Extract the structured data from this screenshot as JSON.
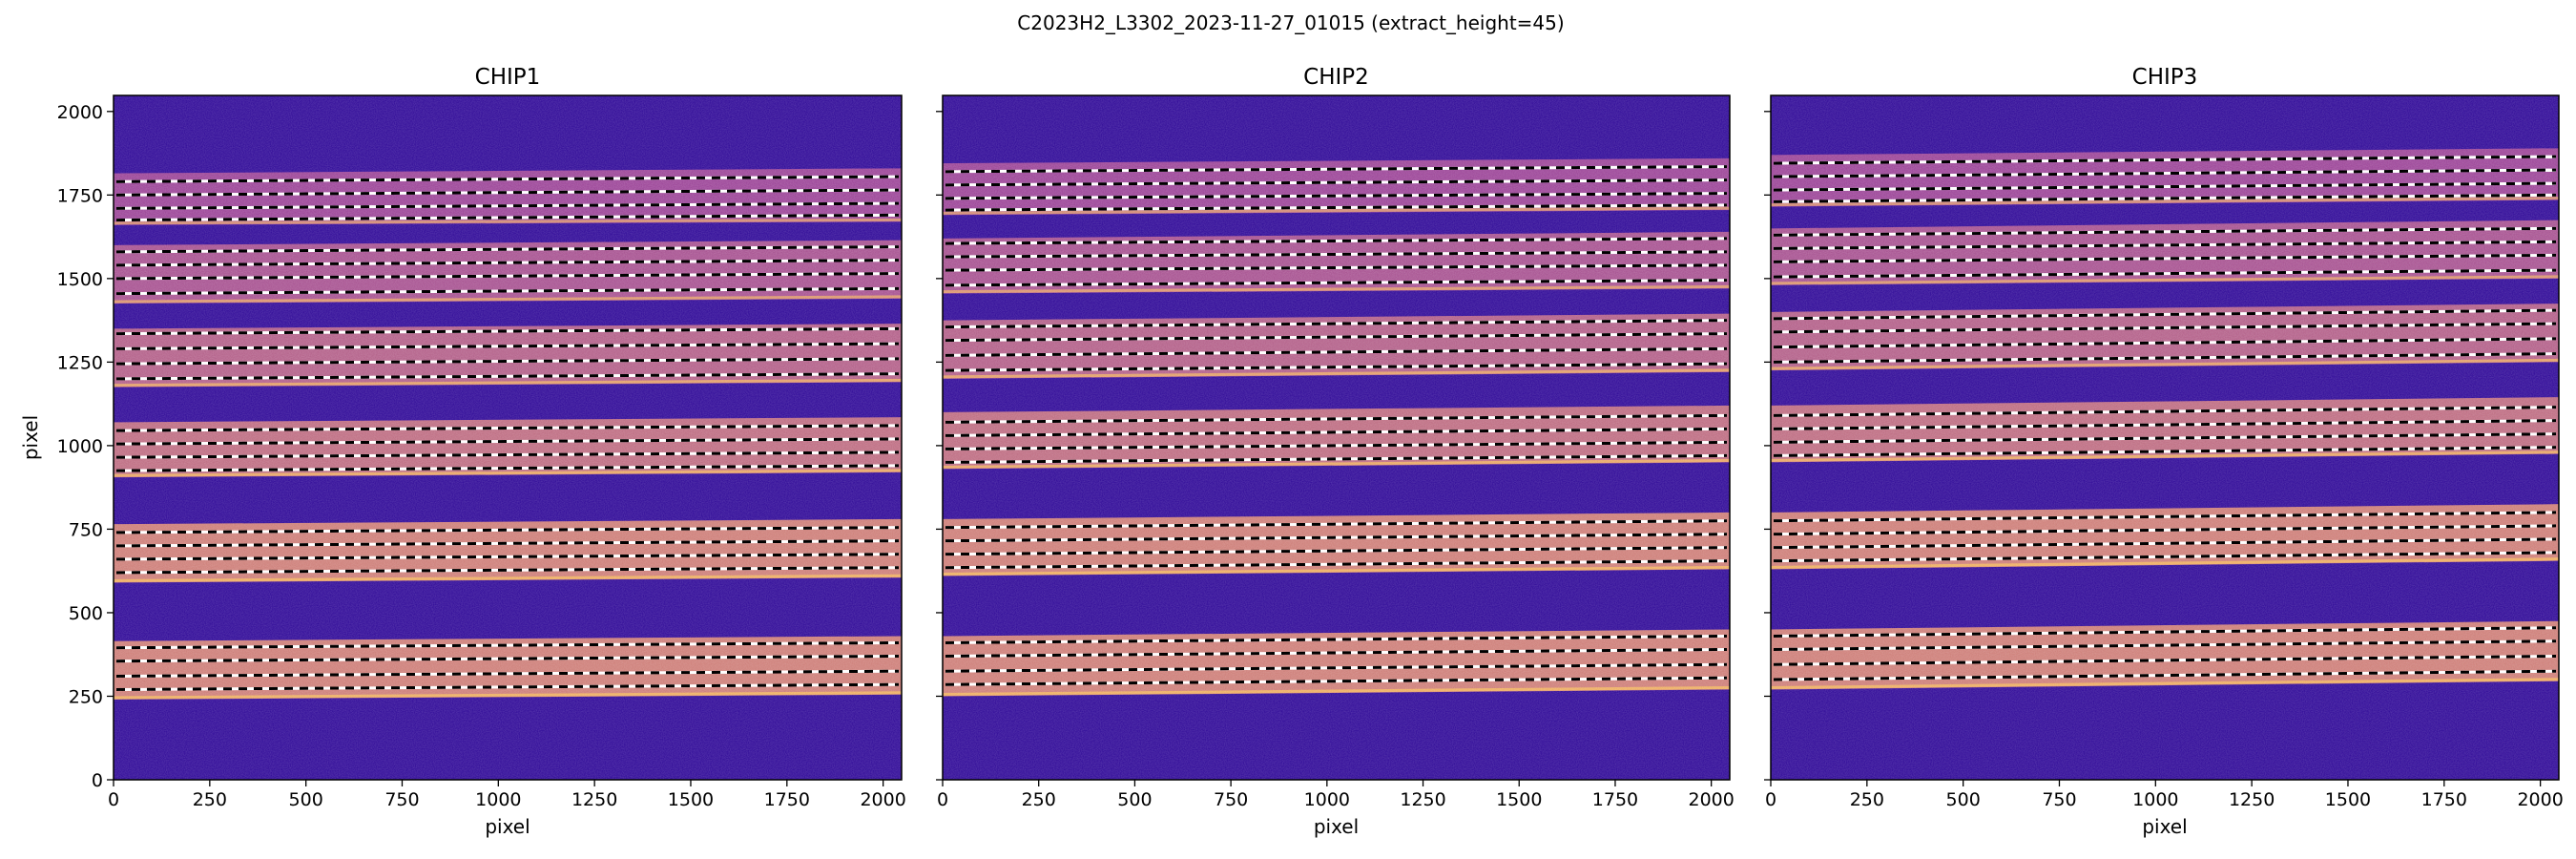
{
  "figure_title": "C2023H2_L3302_2023-11-27_01015  (extract_height=45)",
  "colors": {
    "background": "#2c0596",
    "band_low": "#8a2fa0",
    "band_high": "#d98a6e",
    "band_edge": "#f2b45e",
    "trace_line": "#ffffff",
    "trace_dash": "#000000"
  },
  "chart_data": [
    {
      "type": "heatmap",
      "title": "CHIP1",
      "xlabel": "pixel",
      "ylabel": "pixel",
      "xlim": [
        0,
        2048
      ],
      "ylim": [
        0,
        2048
      ],
      "x_ticks": [
        0,
        250,
        500,
        750,
        1000,
        1250,
        1500,
        1750,
        2000
      ],
      "y_ticks": [
        0,
        250,
        500,
        750,
        1000,
        1250,
        1500,
        1750,
        2000
      ],
      "bands": [
        {
          "bottom_left": 240,
          "bottom_right": 255,
          "top_left": 415,
          "top_right": 430,
          "intensity": 0.85
        },
        {
          "bottom_left": 590,
          "bottom_right": 605,
          "top_left": 765,
          "top_right": 780,
          "intensity": 0.85
        },
        {
          "bottom_left": 905,
          "bottom_right": 920,
          "top_left": 1070,
          "top_right": 1085,
          "intensity": 0.65
        },
        {
          "bottom_left": 1175,
          "bottom_right": 1190,
          "top_left": 1350,
          "top_right": 1365,
          "intensity": 0.5
        },
        {
          "bottom_left": 1425,
          "bottom_right": 1440,
          "top_left": 1600,
          "top_right": 1615,
          "intensity": 0.35
        },
        {
          "bottom_left": 1660,
          "bottom_right": 1670,
          "top_left": 1815,
          "top_right": 1830,
          "intensity": 0.2
        }
      ],
      "trace_lines": [
        {
          "left": 270,
          "right": 285
        },
        {
          "left": 310,
          "right": 325
        },
        {
          "left": 355,
          "right": 370
        },
        {
          "left": 395,
          "right": 410
        },
        {
          "left": 620,
          "right": 635
        },
        {
          "left": 660,
          "right": 675
        },
        {
          "left": 700,
          "right": 715
        },
        {
          "left": 740,
          "right": 755
        },
        {
          "left": 925,
          "right": 940
        },
        {
          "left": 965,
          "right": 980
        },
        {
          "left": 1005,
          "right": 1020
        },
        {
          "left": 1045,
          "right": 1060
        },
        {
          "left": 1200,
          "right": 1215
        },
        {
          "left": 1245,
          "right": 1260
        },
        {
          "left": 1290,
          "right": 1305
        },
        {
          "left": 1335,
          "right": 1350
        },
        {
          "left": 1455,
          "right": 1470
        },
        {
          "left": 1500,
          "right": 1515
        },
        {
          "left": 1540,
          "right": 1555
        },
        {
          "left": 1580,
          "right": 1595
        },
        {
          "left": 1675,
          "right": 1690
        },
        {
          "left": 1710,
          "right": 1725
        },
        {
          "left": 1750,
          "right": 1765
        },
        {
          "left": 1790,
          "right": 1805
        }
      ]
    },
    {
      "type": "heatmap",
      "title": "CHIP2",
      "xlabel": "pixel",
      "ylabel": "",
      "xlim": [
        0,
        2048
      ],
      "ylim": [
        0,
        2048
      ],
      "x_ticks": [
        0,
        250,
        500,
        750,
        1000,
        1250,
        1500,
        1750,
        2000
      ],
      "y_ticks": [],
      "bands": [
        {
          "bottom_left": 250,
          "bottom_right": 270,
          "top_left": 430,
          "top_right": 450,
          "intensity": 0.85
        },
        {
          "bottom_left": 610,
          "bottom_right": 630,
          "top_left": 780,
          "top_right": 800,
          "intensity": 0.85
        },
        {
          "bottom_left": 930,
          "bottom_right": 950,
          "top_left": 1100,
          "top_right": 1120,
          "intensity": 0.65
        },
        {
          "bottom_left": 1200,
          "bottom_right": 1220,
          "top_left": 1375,
          "top_right": 1395,
          "intensity": 0.5
        },
        {
          "bottom_left": 1455,
          "bottom_right": 1470,
          "top_left": 1620,
          "top_right": 1640,
          "intensity": 0.35
        },
        {
          "bottom_left": 1690,
          "bottom_right": 1705,
          "top_left": 1845,
          "top_right": 1860,
          "intensity": 0.2
        }
      ],
      "trace_lines": [
        {
          "left": 285,
          "right": 305
        },
        {
          "left": 325,
          "right": 345
        },
        {
          "left": 370,
          "right": 390
        },
        {
          "left": 410,
          "right": 430
        },
        {
          "left": 635,
          "right": 655
        },
        {
          "left": 675,
          "right": 695
        },
        {
          "left": 715,
          "right": 735
        },
        {
          "left": 755,
          "right": 775
        },
        {
          "left": 950,
          "right": 970
        },
        {
          "left": 990,
          "right": 1010
        },
        {
          "left": 1030,
          "right": 1050
        },
        {
          "left": 1070,
          "right": 1090
        },
        {
          "left": 1225,
          "right": 1245
        },
        {
          "left": 1270,
          "right": 1290
        },
        {
          "left": 1315,
          "right": 1335
        },
        {
          "left": 1355,
          "right": 1375
        },
        {
          "left": 1480,
          "right": 1495
        },
        {
          "left": 1525,
          "right": 1540
        },
        {
          "left": 1565,
          "right": 1580
        },
        {
          "left": 1605,
          "right": 1620
        },
        {
          "left": 1705,
          "right": 1720
        },
        {
          "left": 1740,
          "right": 1755
        },
        {
          "left": 1780,
          "right": 1795
        },
        {
          "left": 1820,
          "right": 1835
        }
      ]
    },
    {
      "type": "heatmap",
      "title": "CHIP3",
      "xlabel": "pixel",
      "ylabel": "",
      "xlim": [
        0,
        2048
      ],
      "ylim": [
        0,
        2048
      ],
      "x_ticks": [
        0,
        250,
        500,
        750,
        1000,
        1250,
        1500,
        1750,
        2000
      ],
      "y_ticks": [],
      "bands": [
        {
          "bottom_left": 270,
          "bottom_right": 295,
          "top_left": 450,
          "top_right": 475,
          "intensity": 0.85
        },
        {
          "bottom_left": 630,
          "bottom_right": 655,
          "top_left": 800,
          "top_right": 825,
          "intensity": 0.85
        },
        {
          "bottom_left": 950,
          "bottom_right": 975,
          "top_left": 1120,
          "top_right": 1145,
          "intensity": 0.65
        },
        {
          "bottom_left": 1225,
          "bottom_right": 1250,
          "top_left": 1400,
          "top_right": 1425,
          "intensity": 0.5
        },
        {
          "bottom_left": 1480,
          "bottom_right": 1500,
          "top_left": 1650,
          "top_right": 1675,
          "intensity": 0.35
        },
        {
          "bottom_left": 1715,
          "bottom_right": 1735,
          "top_left": 1870,
          "top_right": 1890,
          "intensity": 0.2
        }
      ],
      "trace_lines": [
        {
          "left": 300,
          "right": 325
        },
        {
          "left": 345,
          "right": 370
        },
        {
          "left": 390,
          "right": 415
        },
        {
          "left": 430,
          "right": 455
        },
        {
          "left": 655,
          "right": 680
        },
        {
          "left": 695,
          "right": 720
        },
        {
          "left": 735,
          "right": 760
        },
        {
          "left": 775,
          "right": 800
        },
        {
          "left": 970,
          "right": 995
        },
        {
          "left": 1010,
          "right": 1035
        },
        {
          "left": 1050,
          "right": 1075
        },
        {
          "left": 1090,
          "right": 1115
        },
        {
          "left": 1250,
          "right": 1275
        },
        {
          "left": 1295,
          "right": 1320
        },
        {
          "left": 1340,
          "right": 1365
        },
        {
          "left": 1380,
          "right": 1405
        },
        {
          "left": 1505,
          "right": 1525
        },
        {
          "left": 1550,
          "right": 1570
        },
        {
          "left": 1590,
          "right": 1610
        },
        {
          "left": 1630,
          "right": 1650
        },
        {
          "left": 1730,
          "right": 1750
        },
        {
          "left": 1765,
          "right": 1785
        },
        {
          "left": 1805,
          "right": 1825
        },
        {
          "left": 1845,
          "right": 1865
        }
      ]
    }
  ]
}
